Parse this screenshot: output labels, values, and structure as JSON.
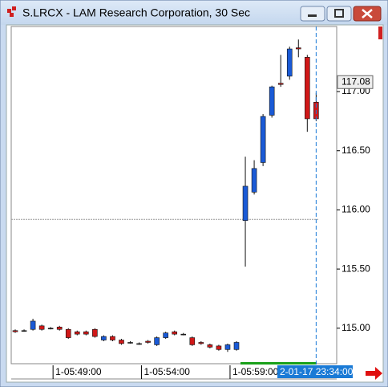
{
  "chart_data": {
    "type": "candlestick",
    "title": "S.LRCX - LAM Research Corporation, 30 Sec",
    "categories": [
      null,
      null,
      null,
      null,
      "1-05:49:00",
      null,
      null,
      null,
      null,
      null,
      null,
      null,
      null,
      null,
      "1-05:54:00",
      null,
      null,
      null,
      null,
      null,
      null,
      null,
      null,
      null,
      "1-05:59:00",
      null,
      null,
      null,
      null,
      null,
      null,
      null,
      null,
      null,
      "2-01-17 23:34:00"
    ],
    "open": [
      114.98,
      114.98,
      114.99,
      115.02,
      115.0,
      115.01,
      114.99,
      114.97,
      114.97,
      114.99,
      114.9,
      114.93,
      114.9,
      114.88,
      114.87,
      114.89,
      114.86,
      114.92,
      114.97,
      114.95,
      114.92,
      114.88,
      114.86,
      114.85,
      114.82,
      114.82,
      115.91,
      116.15,
      116.4,
      116.8,
      117.07,
      117.13,
      117.37,
      117.29,
      116.91
    ],
    "high": [
      114.99,
      114.99,
      115.08,
      115.03,
      115.01,
      115.02,
      115.0,
      114.98,
      114.98,
      115.0,
      114.94,
      114.94,
      114.91,
      114.89,
      114.88,
      114.9,
      114.93,
      114.97,
      114.98,
      114.96,
      114.93,
      114.89,
      114.87,
      114.86,
      114.87,
      114.89,
      116.45,
      116.42,
      116.81,
      117.05,
      117.31,
      117.38,
      117.44,
      117.31,
      116.99
    ],
    "low": [
      114.96,
      114.97,
      114.98,
      114.98,
      114.99,
      114.98,
      114.91,
      114.94,
      114.94,
      114.92,
      114.89,
      114.89,
      114.86,
      114.87,
      114.86,
      114.87,
      114.85,
      114.91,
      114.94,
      114.94,
      114.85,
      114.86,
      114.83,
      114.81,
      114.8,
      114.81,
      115.52,
      116.13,
      116.37,
      116.78,
      117.04,
      117.1,
      117.29,
      116.66,
      116.75
    ],
    "close": [
      114.97,
      114.98,
      115.06,
      114.99,
      115.0,
      114.99,
      114.92,
      114.95,
      114.95,
      114.93,
      114.93,
      114.9,
      114.87,
      114.88,
      114.87,
      114.88,
      114.92,
      114.96,
      114.95,
      114.95,
      114.86,
      114.87,
      114.84,
      114.82,
      114.86,
      114.88,
      116.2,
      116.35,
      116.79,
      117.04,
      117.06,
      117.36,
      117.36,
      116.77,
      116.77
    ],
    "up_color": "#1a5ad6",
    "down_color": "#d01818",
    "ylim": [
      114.7,
      117.55
    ],
    "yticks": [
      {
        "value": 115,
        "label": "115.00"
      },
      {
        "value": 115.5,
        "label": "115.50"
      },
      {
        "value": 116,
        "label": "116.00"
      },
      {
        "value": 116.5,
        "label": "116.50"
      },
      {
        "value": 117,
        "label": "117.00"
      }
    ],
    "reference_line": 115.92,
    "last_price": {
      "value": 117.08,
      "label": "117.08"
    }
  }
}
